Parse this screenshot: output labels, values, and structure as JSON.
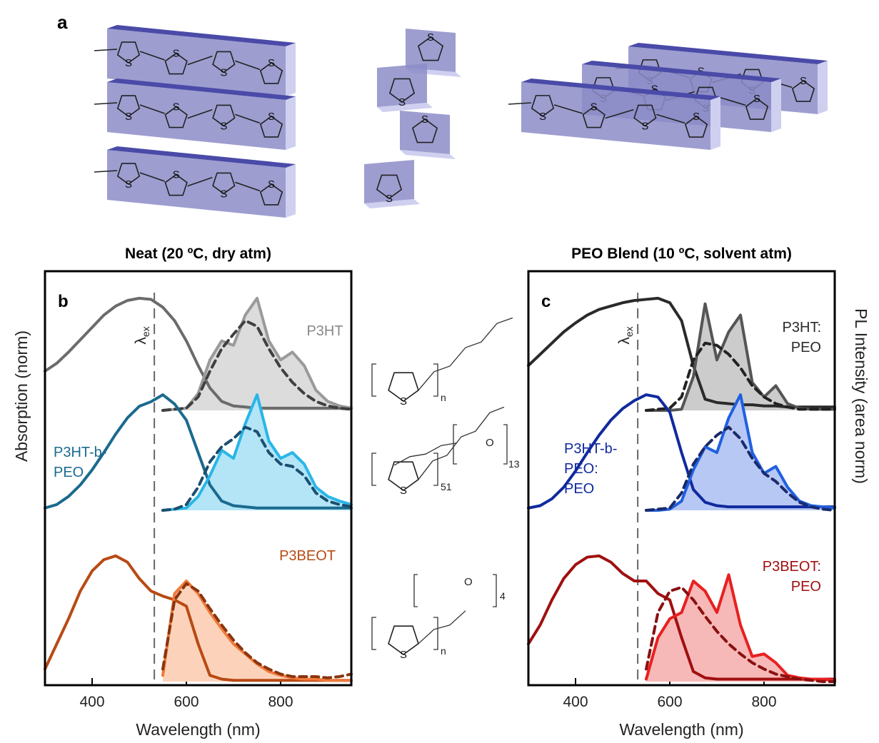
{
  "figure_a": {
    "label": "a",
    "ring_atom": "S"
  },
  "structures": [
    {
      "ring_atom": "S",
      "repeat": "n"
    },
    {
      "ring_atom": "S",
      "repeat": "51",
      "side_atom": "O",
      "side_repeat": "13"
    },
    {
      "ring_atom": "S",
      "repeat": "n",
      "side_atom": "O",
      "side_repeat": "4"
    }
  ],
  "chart_data": [
    {
      "type": "line",
      "label": "b",
      "title": "Neat (20 ºC, dry atm)",
      "xlabel": "Wavelength (nm)",
      "ylabel": "Absorption (norm)",
      "xlim": [
        300,
        950
      ],
      "xticks": [
        400,
        600,
        800
      ],
      "excitation_wavelength": 532,
      "excitation_label": {
        "symbol": "λ",
        "subscript": "ex"
      },
      "x": [
        300,
        325,
        350,
        375,
        400,
        425,
        450,
        475,
        500,
        525,
        550,
        575,
        600,
        625,
        650,
        675,
        700,
        725,
        750,
        775,
        800,
        825,
        850,
        875,
        900,
        925,
        950
      ],
      "groups": [
        {
          "name": [
            "P3HT"
          ],
          "ylim": [
            0,
            1.05
          ],
          "series": [
            {
              "color": "#6b6b6b",
              "values": [
                0.35,
                0.42,
                0.52,
                0.63,
                0.74,
                0.85,
                0.93,
                0.98,
                1.0,
                0.99,
                0.92,
                0.8,
                0.62,
                0.4,
                0.2,
                0.08,
                0.04,
                0.03,
                0.02,
                0.02,
                0.02,
                0.02,
                0.02,
                0.02,
                0.02,
                0.02,
                0.02
              ]
            },
            {
              "color": "#9a9a9a",
              "fill": "#dcdcdc",
              "values": [
                null,
                null,
                null,
                null,
                null,
                null,
                null,
                null,
                null,
                null,
                0.0,
                0.01,
                0.02,
                0.15,
                0.45,
                0.62,
                0.58,
                0.85,
                1.0,
                0.62,
                0.45,
                0.52,
                0.4,
                0.18,
                0.08,
                0.04,
                0.02
              ]
            },
            {
              "color": "#404040",
              "dash": true,
              "values": [
                null,
                null,
                null,
                null,
                null,
                null,
                null,
                null,
                null,
                null,
                0.0,
                0.01,
                0.02,
                0.12,
                0.35,
                0.55,
                0.68,
                0.8,
                0.75,
                0.55,
                0.38,
                0.25,
                0.15,
                0.08,
                0.04,
                0.02,
                0.01
              ]
            }
          ]
        },
        {
          "name": [
            "P3HT-b-",
            "PEO"
          ],
          "ylim": [
            0,
            1.05
          ],
          "series": [
            {
              "color": "#1b6a8f",
              "values": [
                0.02,
                0.05,
                0.12,
                0.22,
                0.35,
                0.5,
                0.66,
                0.8,
                0.9,
                0.94,
                1.0,
                0.92,
                0.78,
                0.5,
                0.22,
                0.08,
                0.04,
                0.03,
                0.02,
                0.02,
                0.02,
                0.02,
                0.02,
                0.02,
                0.02,
                0.02,
                0.02
              ]
            },
            {
              "color": "#29b6e8",
              "fill": "#b3e5f7",
              "values": [
                null,
                null,
                null,
                null,
                null,
                null,
                null,
                null,
                null,
                null,
                0.0,
                0.01,
                0.02,
                0.12,
                0.3,
                0.52,
                0.45,
                0.75,
                1.0,
                0.6,
                0.45,
                0.5,
                0.4,
                0.2,
                0.12,
                0.08,
                0.05
              ]
            },
            {
              "color": "#1b4f6f",
              "dash": true,
              "values": [
                null,
                null,
                null,
                null,
                null,
                null,
                null,
                null,
                null,
                null,
                0.0,
                0.01,
                0.05,
                0.2,
                0.42,
                0.55,
                0.62,
                0.72,
                0.68,
                0.5,
                0.4,
                0.38,
                0.3,
                0.15,
                0.08,
                0.05,
                0.03
              ]
            }
          ]
        },
        {
          "name": [
            "P3BEOT"
          ],
          "ylim": [
            0,
            1.05
          ],
          "series": [
            {
              "color": "#b84a14",
              "values": [
                0.1,
                0.3,
                0.5,
                0.72,
                0.88,
                0.97,
                1.0,
                0.95,
                0.82,
                0.72,
                0.68,
                0.65,
                0.6,
                0.3,
                0.05,
                0.02,
                0.01,
                0.01,
                0.01,
                0.01,
                0.01,
                0.01,
                0.01,
                0.01,
                0.01,
                0.01,
                0.01
              ]
            },
            {
              "color": "#f07a3a",
              "fill": "#fcd3ba",
              "values": [
                null,
                null,
                null,
                null,
                null,
                null,
                null,
                null,
                null,
                null,
                0.05,
                0.7,
                0.8,
                0.7,
                0.55,
                0.42,
                0.3,
                0.22,
                0.14,
                0.08,
                0.05,
                0.03,
                0.02,
                0.02,
                0.01,
                0.01,
                0.01
              ]
            },
            {
              "color": "#8a3510",
              "dash": true,
              "values": [
                null,
                null,
                null,
                null,
                null,
                null,
                null,
                null,
                null,
                null,
                0.1,
                0.65,
                0.78,
                0.72,
                0.58,
                0.45,
                0.33,
                0.23,
                0.15,
                0.1,
                0.06,
                0.04,
                0.04,
                0.04,
                0.03,
                0.04,
                0.06
              ]
            }
          ]
        }
      ]
    },
    {
      "type": "line",
      "label": "c",
      "title": "PEO Blend (10 ºC, solvent atm)",
      "xlabel": "Wavelength (nm)",
      "ylabel": "PL Intensity (area norm)",
      "xlim": [
        300,
        950
      ],
      "xticks": [
        400,
        600,
        800
      ],
      "excitation_wavelength": 532,
      "excitation_label": {
        "symbol": "λ",
        "subscript": "ex"
      },
      "x": [
        300,
        325,
        350,
        375,
        400,
        425,
        450,
        475,
        500,
        525,
        550,
        575,
        600,
        625,
        650,
        675,
        700,
        725,
        750,
        775,
        800,
        825,
        850,
        875,
        900,
        925,
        950
      ],
      "groups": [
        {
          "name": [
            "P3HT:",
            "PEO"
          ],
          "ylim": [
            0,
            1.05
          ],
          "series": [
            {
              "color": "#2a2a2a",
              "values": [
                0.4,
                0.5,
                0.6,
                0.7,
                0.78,
                0.85,
                0.9,
                0.93,
                0.96,
                0.98,
                0.99,
                1.0,
                0.96,
                0.8,
                0.4,
                0.1,
                0.07,
                0.06,
                0.05,
                0.05,
                0.04,
                0.04,
                0.03,
                0.03,
                0.03,
                0.03,
                0.03
              ]
            },
            {
              "color": "#555555",
              "fill": "#cccccc",
              "values": [
                null,
                null,
                null,
                null,
                null,
                null,
                null,
                null,
                null,
                null,
                0.0,
                0.0,
                0.0,
                0.01,
                0.3,
                0.95,
                0.45,
                0.7,
                0.85,
                0.25,
                0.12,
                0.22,
                0.06,
                0.02,
                0.01,
                0.01,
                0.01
              ]
            },
            {
              "color": "#222222",
              "dash": true,
              "values": [
                null,
                null,
                null,
                null,
                null,
                null,
                null,
                null,
                null,
                null,
                0.0,
                0.01,
                0.02,
                0.12,
                0.45,
                0.6,
                0.58,
                0.5,
                0.38,
                0.22,
                0.12,
                0.06,
                0.03,
                0.01,
                0.01,
                0.01,
                0.01
              ]
            }
          ]
        },
        {
          "name": [
            "P3HT-b-",
            "PEO:",
            "PEO"
          ],
          "ylim": [
            0,
            1.05
          ],
          "series": [
            {
              "color": "#102a9e",
              "values": [
                0.02,
                0.04,
                0.1,
                0.2,
                0.34,
                0.5,
                0.65,
                0.78,
                0.88,
                0.95,
                1.0,
                0.98,
                0.85,
                0.5,
                0.18,
                0.07,
                0.04,
                0.03,
                0.03,
                0.03,
                0.03,
                0.03,
                0.03,
                0.03,
                0.03,
                0.03,
                0.03
              ]
            },
            {
              "color": "#2060e0",
              "fill": "#b8c8f4",
              "values": [
                null,
                null,
                null,
                null,
                null,
                null,
                null,
                null,
                null,
                null,
                0.0,
                0.0,
                0.01,
                0.08,
                0.35,
                0.55,
                0.5,
                0.8,
                1.0,
                0.5,
                0.32,
                0.38,
                0.2,
                0.08,
                0.04,
                0.03,
                0.02
              ]
            },
            {
              "color": "#1a2a6a",
              "dash": true,
              "values": [
                null,
                null,
                null,
                null,
                null,
                null,
                null,
                null,
                null,
                null,
                0.0,
                0.01,
                0.02,
                0.15,
                0.4,
                0.55,
                0.65,
                0.72,
                0.62,
                0.45,
                0.32,
                0.25,
                0.15,
                0.07,
                0.03,
                0.01,
                0.0
              ]
            }
          ]
        },
        {
          "name": [
            "P3BEOT:",
            "PEO"
          ],
          "ylim": [
            0,
            1.05
          ],
          "series": [
            {
              "color": "#a01010",
              "values": [
                0.3,
                0.45,
                0.65,
                0.82,
                0.93,
                0.99,
                1.0,
                0.95,
                0.86,
                0.8,
                0.8,
                0.7,
                0.65,
                0.35,
                0.08,
                0.03,
                0.02,
                0.02,
                0.02,
                0.02,
                0.02,
                0.02,
                0.02,
                0.02,
                0.02,
                0.02,
                0.02
              ]
            },
            {
              "color": "#e82020",
              "fill": "#f7b8b8",
              "values": [
                null,
                null,
                null,
                null,
                null,
                null,
                null,
                null,
                null,
                null,
                0.02,
                0.35,
                0.5,
                0.55,
                0.8,
                0.72,
                0.55,
                0.85,
                0.45,
                0.2,
                0.22,
                0.15,
                0.05,
                0.03,
                0.02,
                0.02,
                0.01
              ]
            },
            {
              "color": "#8a1010",
              "dash": true,
              "values": [
                null,
                null,
                null,
                null,
                null,
                null,
                null,
                null,
                null,
                null,
                0.1,
                0.55,
                0.72,
                0.75,
                0.65,
                0.52,
                0.4,
                0.3,
                0.22,
                0.15,
                0.1,
                0.06,
                0.04,
                0.02,
                0.01,
                0.0,
                0.0
              ]
            }
          ]
        }
      ]
    }
  ]
}
